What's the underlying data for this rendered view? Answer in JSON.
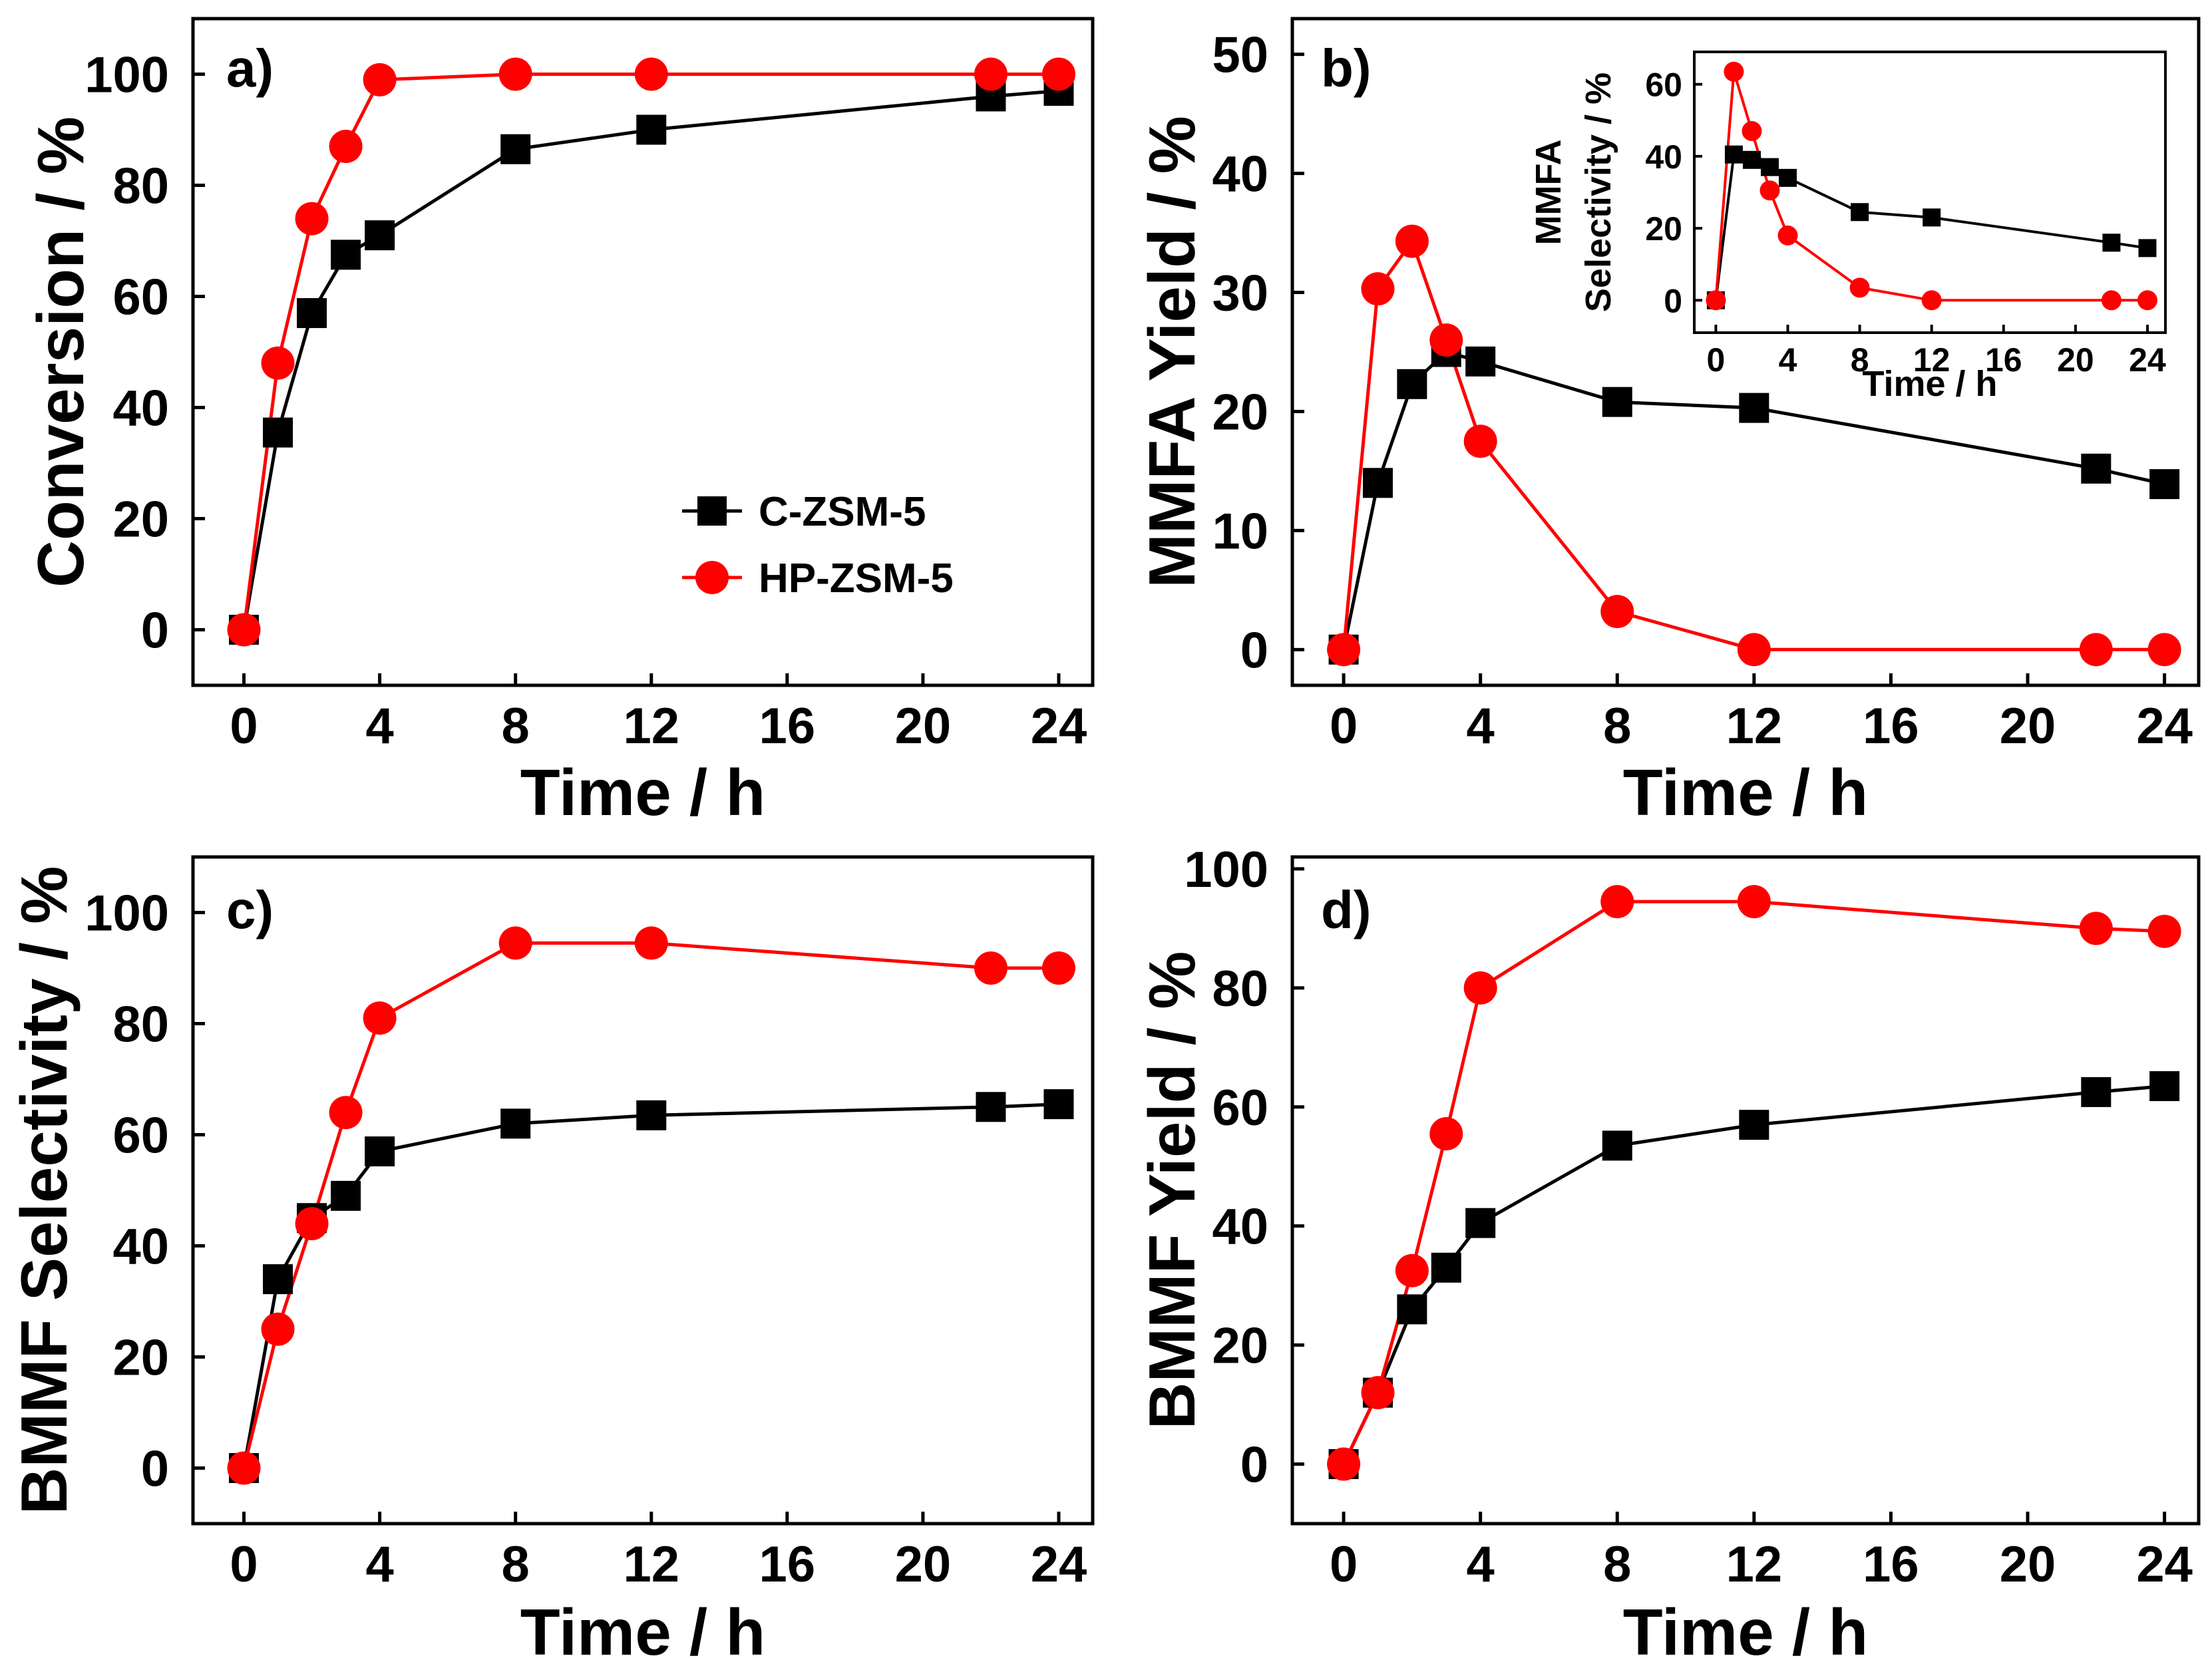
{
  "colors": {
    "c_zsm5": "#000000",
    "hp_zsm5": "#ff0000"
  },
  "legend": {
    "c_zsm5": "C-ZSM-5",
    "hp_zsm5": "HP-ZSM-5"
  },
  "chart_data": [
    {
      "id": "a",
      "type": "line",
      "panel_label": "a)",
      "xlabel": "Time / h",
      "ylabel": "Conversion / %",
      "xlim": [
        -1.5,
        25
      ],
      "ylim": [
        -10,
        110
      ],
      "xticks": [
        "0",
        "4",
        "8",
        "12",
        "16",
        "20",
        "24"
      ],
      "yticks": [
        "0",
        "20",
        "40",
        "60",
        "80",
        "100"
      ],
      "legend_position": "lower-right",
      "series": [
        {
          "name": "C-ZSM-5",
          "marker": "square",
          "x": [
            0,
            1,
            2,
            3,
            4,
            8,
            12,
            22,
            24
          ],
          "y": [
            0,
            35.5,
            57,
            67.5,
            71,
            86.5,
            90,
            96,
            97
          ]
        },
        {
          "name": "HP-ZSM-5",
          "marker": "circle",
          "x": [
            0,
            1,
            2,
            3,
            4,
            8,
            12,
            22,
            24
          ],
          "y": [
            0,
            48,
            74,
            87,
            99,
            100,
            100,
            100,
            100
          ]
        }
      ]
    },
    {
      "id": "b",
      "type": "line",
      "panel_label": "b)",
      "xlabel": "Time / h",
      "ylabel": "MMFA Yield / %",
      "xlim": [
        -1.5,
        25
      ],
      "ylim": [
        -3,
        53
      ],
      "xticks": [
        "0",
        "4",
        "8",
        "12",
        "16",
        "20",
        "24"
      ],
      "yticks": [
        "0",
        "10",
        "20",
        "30",
        "40",
        "50"
      ],
      "series": [
        {
          "name": "C-ZSM-5",
          "marker": "square",
          "x": [
            0,
            1,
            2,
            3,
            4,
            8,
            12,
            22,
            24
          ],
          "y": [
            0,
            14,
            22.3,
            25,
            24.2,
            20.8,
            20.3,
            15.2,
            13.9
          ]
        },
        {
          "name": "HP-ZSM-5",
          "marker": "circle",
          "x": [
            0,
            1,
            2,
            3,
            4,
            8,
            12,
            22,
            24
          ],
          "y": [
            0,
            30.3,
            34.3,
            26,
            17.5,
            3.2,
            0,
            0,
            0
          ]
        }
      ],
      "inset": {
        "type": "line",
        "xlabel": "Time / h",
        "ylabel_line1": "MMFA",
        "ylabel_line2": "Selectivity / %",
        "xlim": [
          -1.2,
          25
        ],
        "ylim": [
          -9,
          69
        ],
        "xticks": [
          "0",
          "4",
          "8",
          "12",
          "16",
          "20",
          "24"
        ],
        "yticks": [
          "0",
          "20",
          "40",
          "60"
        ],
        "series": [
          {
            "name": "C-ZSM-5",
            "marker": "square",
            "x": [
              0,
              1,
              2,
              3,
              4,
              8,
              12,
              22,
              24
            ],
            "y": [
              0,
              40.5,
              39,
              37,
              34,
              24.5,
              23,
              16,
              14.5
            ]
          },
          {
            "name": "HP-ZSM-5",
            "marker": "circle",
            "x": [
              0,
              1,
              2,
              3,
              4,
              8,
              12,
              22,
              24
            ],
            "y": [
              0,
              63.5,
              47,
              30.5,
              18,
              3.5,
              0,
              0,
              0
            ]
          }
        ]
      }
    },
    {
      "id": "c",
      "type": "line",
      "panel_label": "c)",
      "xlabel": "Time / h",
      "ylabel": "BMMF Selectivity / %",
      "xlim": [
        -1.5,
        25
      ],
      "ylim": [
        -10,
        110
      ],
      "xticks": [
        "0",
        "4",
        "8",
        "12",
        "16",
        "20",
        "24"
      ],
      "yticks": [
        "0",
        "20",
        "40",
        "60",
        "80",
        "100"
      ],
      "series": [
        {
          "name": "C-ZSM-5",
          "marker": "square",
          "x": [
            0,
            1,
            2,
            3,
            4,
            8,
            12,
            22,
            24
          ],
          "y": [
            0,
            34,
            45,
            49,
            57,
            62,
            63.5,
            65,
            65.5
          ]
        },
        {
          "name": "HP-ZSM-5",
          "marker": "circle",
          "x": [
            0,
            1,
            2,
            3,
            4,
            8,
            12,
            22,
            24
          ],
          "y": [
            0,
            25,
            44,
            64,
            81,
            94.5,
            94.5,
            90,
            90
          ]
        }
      ]
    },
    {
      "id": "d",
      "type": "line",
      "panel_label": "d)",
      "xlabel": "Time / h",
      "ylabel": "BMMF Yield / %",
      "xlim": [
        -1.5,
        25
      ],
      "ylim": [
        -10,
        102
      ],
      "xticks": [
        "0",
        "4",
        "8",
        "12",
        "16",
        "20",
        "24"
      ],
      "yticks": [
        "0",
        "20",
        "40",
        "60",
        "80",
        "100"
      ],
      "series": [
        {
          "name": "C-ZSM-5",
          "marker": "square",
          "x": [
            0,
            1,
            2,
            3,
            4,
            8,
            12,
            22,
            24
          ],
          "y": [
            0,
            12,
            26,
            33,
            40.5,
            53.5,
            57,
            62.5,
            63.5
          ]
        },
        {
          "name": "HP-ZSM-5",
          "marker": "circle",
          "x": [
            0,
            1,
            2,
            3,
            4,
            8,
            12,
            22,
            24
          ],
          "y": [
            0,
            12,
            32.5,
            55.5,
            80,
            94.5,
            94.5,
            90,
            89.5
          ]
        }
      ]
    }
  ]
}
